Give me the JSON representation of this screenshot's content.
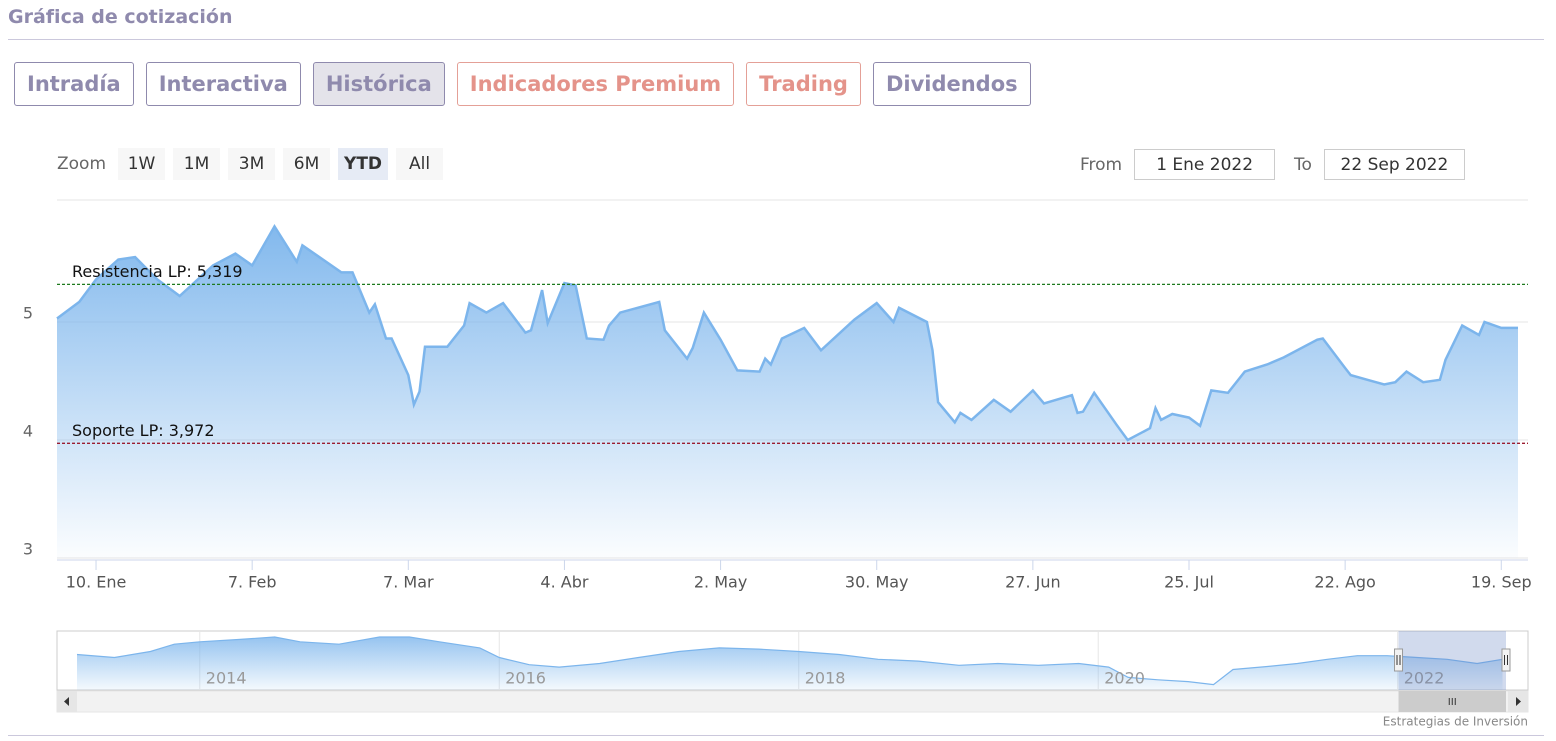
{
  "header": {
    "title": "Gráfica de cotización"
  },
  "tabs": [
    "Intradía",
    "Interactiva",
    "Histórica",
    "Indicadores Premium",
    "Trading",
    "Dividendos"
  ],
  "zoom": {
    "label": "Zoom",
    "buttons": [
      "1W",
      "1M",
      "3M",
      "6M",
      "YTD",
      "All"
    ]
  },
  "range": {
    "from_label": "From",
    "from": "1 Ene 2022",
    "to_label": "To",
    "to": "22 Sep 2022"
  },
  "credit": "Estrategias de Inversión",
  "chart_data": [
    {
      "type": "area",
      "color": "#7cb5ec",
      "grid": true,
      "x": [
        "2022-01-03",
        "2022-01-07",
        "2022-01-10",
        "2022-01-14",
        "2022-01-17",
        "2022-01-21",
        "2022-01-25",
        "2022-01-31",
        "2022-02-04",
        "2022-02-07",
        "2022-02-11",
        "2022-02-15",
        "2022-02-16",
        "2022-02-23",
        "2022-02-25",
        "2022-02-28",
        "2022-03-01",
        "2022-03-03",
        "2022-03-04",
        "2022-03-07",
        "2022-03-08",
        "2022-03-09",
        "2022-03-10",
        "2022-03-14",
        "2022-03-17",
        "2022-03-18",
        "2022-03-21",
        "2022-03-24",
        "2022-03-28",
        "2022-03-29",
        "2022-03-31",
        "2022-04-01",
        "2022-04-04",
        "2022-04-06",
        "2022-04-08",
        "2022-04-11",
        "2022-04-12",
        "2022-04-14",
        "2022-04-21",
        "2022-04-22",
        "2022-04-26",
        "2022-04-27",
        "2022-04-29",
        "2022-05-02",
        "2022-05-05",
        "2022-05-09",
        "2022-05-10",
        "2022-05-11",
        "2022-05-13",
        "2022-05-17",
        "2022-05-20",
        "2022-05-26",
        "2022-05-30",
        "2022-06-02",
        "2022-06-03",
        "2022-06-08",
        "2022-06-09",
        "2022-06-10",
        "2022-06-13",
        "2022-06-14",
        "2022-06-16",
        "2022-06-20",
        "2022-06-23",
        "2022-06-27",
        "2022-06-29",
        "2022-07-04",
        "2022-07-05",
        "2022-07-06",
        "2022-07-08",
        "2022-07-12",
        "2022-07-14",
        "2022-07-18",
        "2022-07-19",
        "2022-07-20",
        "2022-07-22",
        "2022-07-25",
        "2022-07-27",
        "2022-07-29",
        "2022-08-01",
        "2022-08-04",
        "2022-08-08",
        "2022-08-11",
        "2022-08-17",
        "2022-08-18",
        "2022-08-22",
        "2022-08-23",
        "2022-08-26",
        "2022-08-29",
        "2022-08-31",
        "2022-09-02",
        "2022-09-05",
        "2022-09-08",
        "2022-09-09",
        "2022-09-12",
        "2022-09-15",
        "2022-09-16",
        "2022-09-19",
        "2022-09-22"
      ],
      "values": [
        5.03,
        5.17,
        5.36,
        5.53,
        5.55,
        5.36,
        5.22,
        5.48,
        5.58,
        5.48,
        5.81,
        5.51,
        5.65,
        5.42,
        5.42,
        5.08,
        5.15,
        4.86,
        4.86,
        4.55,
        4.3,
        4.41,
        4.79,
        4.79,
        4.97,
        5.16,
        5.08,
        5.16,
        4.91,
        4.93,
        5.27,
        4.99,
        5.33,
        5.31,
        4.86,
        4.85,
        4.97,
        5.08,
        5.17,
        4.93,
        4.69,
        4.78,
        5.08,
        4.85,
        4.59,
        4.58,
        4.69,
        4.64,
        4.86,
        4.95,
        4.76,
        5.02,
        5.16,
        5.0,
        5.12,
        5.0,
        4.76,
        4.32,
        4.15,
        4.23,
        4.17,
        4.34,
        4.24,
        4.42,
        4.31,
        4.38,
        4.23,
        4.24,
        4.4,
        4.13,
        4.0,
        4.1,
        4.27,
        4.17,
        4.22,
        4.19,
        4.12,
        4.42,
        4.4,
        4.58,
        4.64,
        4.7,
        4.85,
        4.86,
        4.61,
        4.55,
        4.51,
        4.47,
        4.49,
        4.58,
        4.49,
        4.51,
        4.68,
        4.97,
        4.89,
        5.0,
        4.95,
        4.95
      ],
      "xlim": [
        "2022-01-03",
        "2022-09-22"
      ],
      "xticks": [
        {
          "value": "2022-01-10",
          "label": "10. Ene"
        },
        {
          "value": "2022-02-07",
          "label": "7. Feb"
        },
        {
          "value": "2022-03-07",
          "label": "7. Mar"
        },
        {
          "value": "2022-04-04",
          "label": "4. Abr"
        },
        {
          "value": "2022-05-02",
          "label": "2. May"
        },
        {
          "value": "2022-05-30",
          "label": "30. May"
        },
        {
          "value": "2022-06-27",
          "label": "27. Jun"
        },
        {
          "value": "2022-07-25",
          "label": "25. Jul"
        },
        {
          "value": "2022-08-22",
          "label": "22. Ago"
        },
        {
          "value": "2022-09-19",
          "label": "19. Sep"
        }
      ],
      "ylim": [
        3,
        6
      ],
      "yticks": [
        3,
        4,
        5
      ],
      "annotations": [
        {
          "label": "Resistencia LP: 5,319",
          "value": 5.319,
          "color": "#1e7a1e"
        },
        {
          "label": "Soporte LP: 3,972",
          "value": 3.972,
          "color": "#9b1c31"
        }
      ]
    },
    {
      "type": "area",
      "color": "#7cb5ec",
      "x": [
        2013.18,
        2013.43,
        2013.67,
        2013.83,
        2014,
        2014.27,
        2014.5,
        2014.67,
        2014.93,
        2015.2,
        2015.4,
        2015.6,
        2015.87,
        2016,
        2016.2,
        2016.4,
        2016.67,
        2016.93,
        2017.2,
        2017.47,
        2017.73,
        2018,
        2018.27,
        2018.53,
        2018.8,
        2019.07,
        2019.33,
        2019.6,
        2019.87,
        2020.07,
        2020.2,
        2020.4,
        2020.6,
        2020.77,
        2020.9,
        2021.13,
        2021.33,
        2021.53,
        2021.73,
        2021.93,
        2022.13,
        2022.33,
        2022.53,
        2022.7
      ],
      "values": [
        5.25,
        5.0,
        5.5,
        6.1,
        6.3,
        6.5,
        6.7,
        6.3,
        6.1,
        6.7,
        6.7,
        6.3,
        5.8,
        5.0,
        4.4,
        4.2,
        4.5,
        5.0,
        5.5,
        5.8,
        5.7,
        5.5,
        5.25,
        4.85,
        4.7,
        4.35,
        4.5,
        4.35,
        4.5,
        4.2,
        3.35,
        3.15,
        3.0,
        2.75,
        4.0,
        4.25,
        4.5,
        4.85,
        5.15,
        5.15,
        5.0,
        4.85,
        4.5,
        4.85
      ],
      "xlim": [
        2013.18,
        2022.73
      ],
      "ylim": [
        2.3,
        7.2
      ],
      "xticks": [
        2014,
        2016,
        2018,
        2020,
        2022
      ]
    }
  ]
}
